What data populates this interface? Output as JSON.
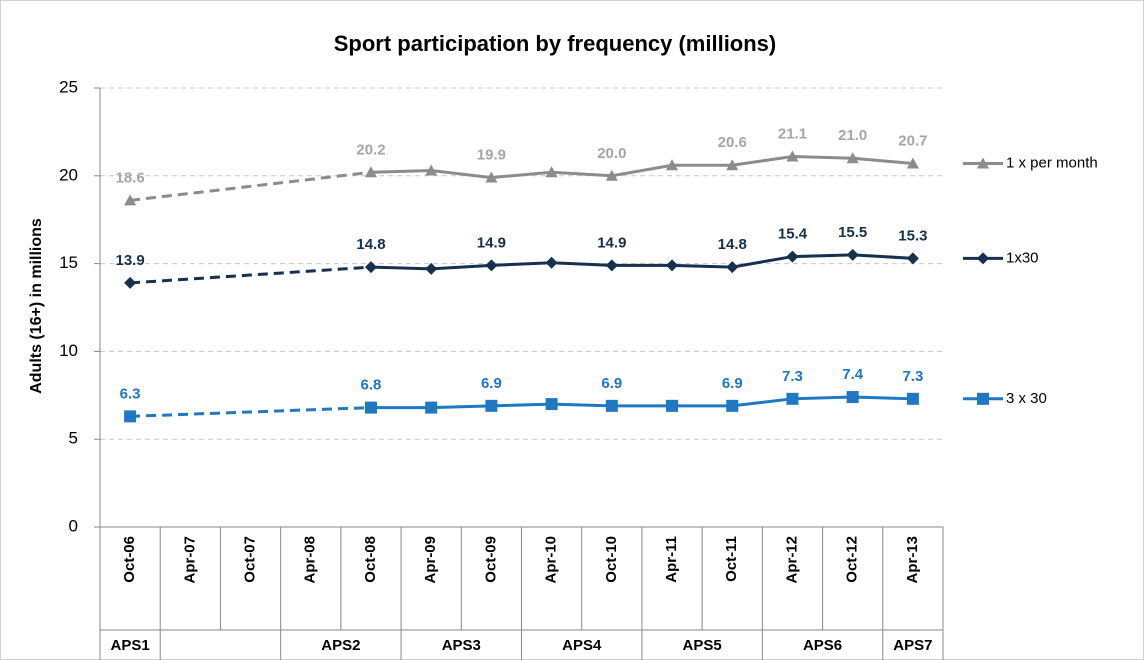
{
  "chart_data": {
    "type": "line",
    "title": "Sport participation by frequency (millions)",
    "y_label": "Adults (16+) in millions",
    "categories": [
      "Oct-06",
      "Apr-07",
      "Oct-07",
      "Apr-08",
      "Oct-08",
      "Apr-09",
      "Oct-09",
      "Apr-10",
      "Oct-10",
      "Apr-11",
      "Oct-11",
      "Apr-12",
      "Oct-12",
      "Apr-13"
    ],
    "groups": [
      {
        "label": "APS1",
        "span": 1
      },
      {
        "label": null,
        "span": 2
      },
      {
        "label": "APS2",
        "span": 2
      },
      {
        "label": "APS3",
        "span": 2
      },
      {
        "label": "APS4",
        "span": 2
      },
      {
        "label": "APS5",
        "span": 2
      },
      {
        "label": "APS6",
        "span": 2
      },
      {
        "label": "APS7",
        "span": 1
      }
    ],
    "series": [
      {
        "name": "1 x per month",
        "color": "#8c8c8c",
        "label_color": "#a6a6a6",
        "marker": "triangle",
        "values": [
          18.6,
          null,
          null,
          null,
          20.2,
          20.3,
          19.9,
          20.2,
          20.0,
          20.6,
          20.6,
          21.1,
          21.0,
          20.7
        ],
        "value_labels": [
          "18.6",
          null,
          null,
          null,
          "20.2",
          null,
          "19.9",
          null,
          "20.0",
          null,
          "20.6",
          "21.1",
          "21.0",
          "20.7"
        ]
      },
      {
        "name": "1x30",
        "color": "#17304f",
        "label_color": "#17304f",
        "marker": "diamond",
        "values": [
          13.9,
          null,
          null,
          null,
          14.8,
          14.7,
          14.9,
          15.05,
          14.9,
          14.9,
          14.8,
          15.4,
          15.5,
          15.3
        ],
        "value_labels": [
          "13.9",
          null,
          null,
          null,
          "14.8",
          null,
          "14.9",
          null,
          "14.9",
          null,
          "14.8",
          "15.4",
          "15.5",
          "15.3"
        ]
      },
      {
        "name": "3 x 30",
        "color": "#1f78c1",
        "label_color": "#1f78c1",
        "marker": "square",
        "values": [
          6.3,
          null,
          null,
          null,
          6.8,
          6.8,
          6.9,
          7.0,
          6.9,
          6.9,
          6.9,
          7.3,
          7.4,
          7.3
        ],
        "value_labels": [
          "6.3",
          null,
          null,
          null,
          "6.8",
          null,
          "6.9",
          null,
          "6.9",
          null,
          "6.9",
          "7.3",
          "7.4",
          "7.3"
        ]
      }
    ],
    "gap_line": "dashed",
    "ylim": [
      0,
      25
    ],
    "yticks": [
      0,
      5,
      10,
      15,
      20,
      25
    ],
    "grid": true,
    "legend": "right"
  }
}
